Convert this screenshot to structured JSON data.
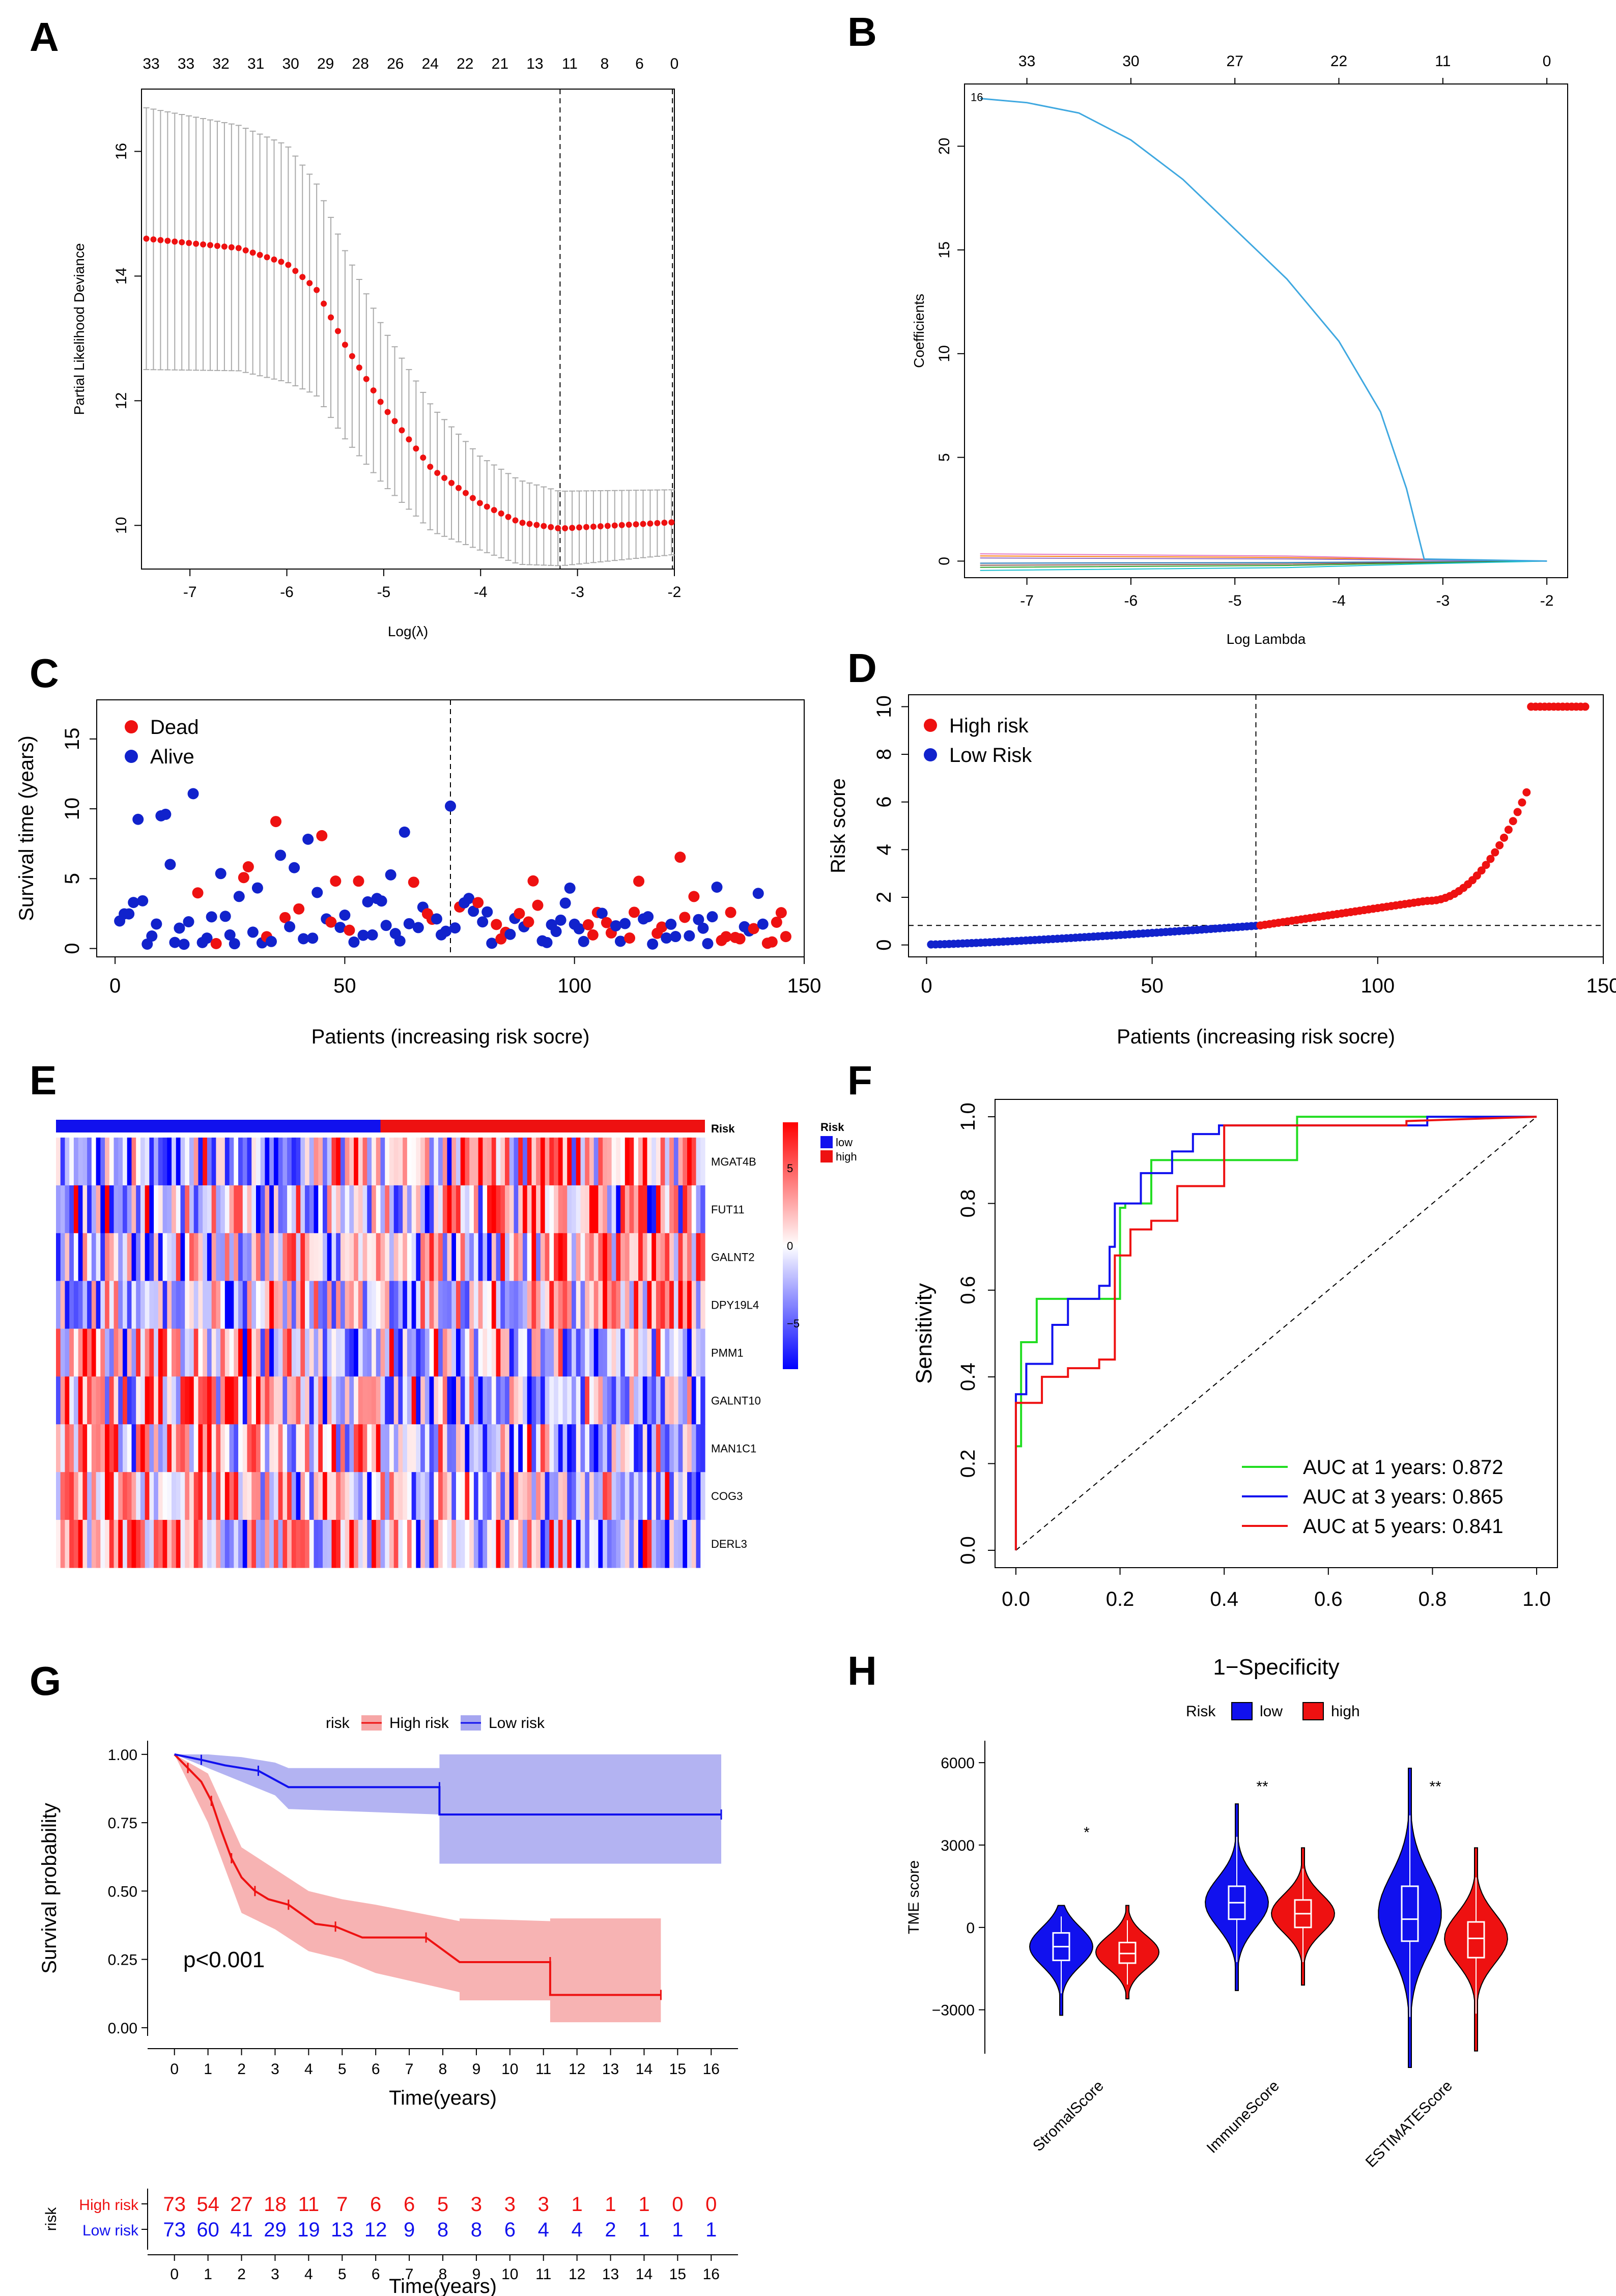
{
  "panels": {
    "A": "A",
    "B": "B",
    "C": "C",
    "D": "D",
    "E": "E",
    "F": "F",
    "G": "G",
    "H": "H"
  },
  "chart_data": [
    {
      "panel": "A",
      "type": "scatter",
      "xlabel": "Log(λ)",
      "ylabel": "Partial Likelihood Deviance",
      "xlim": [
        -7.5,
        -2
      ],
      "ylim": [
        9.3,
        17.0
      ],
      "x_ticks": [
        "-7",
        "-6",
        "-5",
        "-4",
        "-3",
        "-2"
      ],
      "y_ticks": [
        "10",
        "12",
        "14",
        "16"
      ],
      "top_ticks": [
        "33",
        "33",
        "32",
        "31",
        "30",
        "29",
        "28",
        "26",
        "24",
        "22",
        "21",
        "13",
        "11",
        "8",
        "6",
        "0"
      ],
      "vlines": [
        -3.18,
        -2.02
      ],
      "curve_points": [
        [
          -7.45,
          14.6
        ],
        [
          -6.5,
          14.45
        ],
        [
          -6.0,
          14.2
        ],
        [
          -5.7,
          13.8
        ],
        [
          -5.4,
          12.9
        ],
        [
          -5.0,
          11.9
        ],
        [
          -4.5,
          10.9
        ],
        [
          -4.0,
          10.35
        ],
        [
          -3.6,
          10.05
        ],
        [
          -3.18,
          9.95
        ],
        [
          -2.6,
          10.0
        ],
        [
          -2.02,
          10.05
        ]
      ],
      "error_halfwidth": [
        [
          -7.45,
          2.1
        ],
        [
          -6.0,
          1.9
        ],
        [
          -5.0,
          1.25
        ],
        [
          -4.0,
          0.75
        ],
        [
          -3.2,
          0.6
        ],
        [
          -2.0,
          0.52
        ]
      ]
    },
    {
      "panel": "B",
      "type": "line",
      "xlabel": "Log Lambda",
      "ylabel": "Coefficients",
      "xlim": [
        -7.6,
        -1.8
      ],
      "ylim": [
        -0.8,
        23
      ],
      "x_ticks": [
        "-7",
        "-6",
        "-5",
        "-4",
        "-3",
        "-2"
      ],
      "y_ticks": [
        "0",
        "5",
        "10",
        "15",
        "20"
      ],
      "top_ticks": [
        "33",
        "30",
        "27",
        "22",
        "11",
        "0"
      ],
      "curve_label": "16",
      "main_path": [
        [
          -7.45,
          22.3
        ],
        [
          -7.0,
          22.1
        ],
        [
          -6.5,
          21.6
        ],
        [
          -6.0,
          20.3
        ],
        [
          -5.5,
          18.4
        ],
        [
          -5.0,
          16.0
        ],
        [
          -4.5,
          13.6
        ],
        [
          -4.0,
          10.6
        ],
        [
          -3.6,
          7.2
        ],
        [
          -3.35,
          3.5
        ],
        [
          -3.18,
          0.1
        ],
        [
          -2.0,
          0.0
        ]
      ],
      "minor_lines": [
        {
          "start": 0.35,
          "color": "#e377c2"
        },
        {
          "start": 0.25,
          "color": "#ff7f0e"
        },
        {
          "start": 0.15,
          "color": "#9467bd"
        },
        {
          "start": -0.1,
          "color": "#1f77b4"
        },
        {
          "start": -0.2,
          "color": "#8c564b"
        },
        {
          "start": -0.3,
          "color": "#2ca02c"
        },
        {
          "start": -0.45,
          "color": "#17becf"
        }
      ]
    },
    {
      "panel": "C",
      "type": "scatter",
      "xlabel": "Patients (increasing risk socre)",
      "ylabel": "Survival time (years)",
      "xlim": [
        -4,
        150
      ],
      "ylim": [
        -0.6,
        17.8
      ],
      "x_ticks": [
        "0",
        "50",
        "100",
        "150"
      ],
      "y_ticks": [
        "0",
        "5",
        "10",
        "15"
      ],
      "vline": 73,
      "legend": [
        "Dead",
        "Alive"
      ],
      "colors": {
        "dead": "#ee1111",
        "alive": "#1122cc"
      }
    },
    {
      "panel": "D",
      "type": "scatter",
      "xlabel": "Patients (increasing risk socre)",
      "ylabel": "Risk score",
      "xlim": [
        -4,
        150
      ],
      "ylim": [
        -0.5,
        10.5
      ],
      "x_ticks": [
        "0",
        "50",
        "100",
        "150"
      ],
      "y_ticks": [
        "0",
        "2",
        "4",
        "6",
        "8",
        "10"
      ],
      "vline": 73,
      "hline": 0.82,
      "legend": [
        "High risk",
        "Low Risk"
      ],
      "colors": {
        "high": "#ee1111",
        "low": "#1122cc"
      }
    },
    {
      "panel": "E",
      "type": "heatmap",
      "annotation_label": "Risk",
      "genes": [
        "MGAT4B",
        "FUT11",
        "GALNT2",
        "DPY19L4",
        "PMM1",
        "GALNT10",
        "MAN1C1",
        "COG3",
        "DERL3"
      ],
      "scale_ticks": [
        "5",
        "0",
        "−5"
      ],
      "legend_title": "Risk",
      "legend_items": [
        {
          "label": "low",
          "color": "#1111ee"
        },
        {
          "label": "high",
          "color": "#ee1111"
        }
      ],
      "n_low": 73,
      "n_high": 73
    },
    {
      "panel": "F",
      "type": "line",
      "xlabel": "1−Specificity",
      "ylabel": "Sensitivity",
      "xlim": [
        -0.04,
        1.04
      ],
      "ylim": [
        -0.04,
        1.04
      ],
      "x_ticks": [
        "0.0",
        "0.2",
        "0.4",
        "0.6",
        "0.8",
        "1.0"
      ],
      "y_ticks": [
        "0.0",
        "0.2",
        "0.4",
        "0.6",
        "0.8",
        "1.0"
      ],
      "series": [
        {
          "name": "AUC at 1 years: 0.872",
          "color": "#22dd22",
          "points": [
            [
              0,
              0
            ],
            [
              0,
              0.24
            ],
            [
              0.01,
              0.24
            ],
            [
              0.01,
              0.48
            ],
            [
              0.04,
              0.48
            ],
            [
              0.04,
              0.58
            ],
            [
              0.2,
              0.58
            ],
            [
              0.2,
              0.79
            ],
            [
              0.21,
              0.79
            ],
            [
              0.21,
              0.8
            ],
            [
              0.26,
              0.8
            ],
            [
              0.26,
              0.9
            ],
            [
              0.54,
              0.9
            ],
            [
              0.54,
              1.0
            ],
            [
              1,
              1
            ]
          ]
        },
        {
          "name": "AUC at 3 years: 0.865",
          "color": "#1111ee",
          "points": [
            [
              0,
              0
            ],
            [
              0,
              0.36
            ],
            [
              0.02,
              0.36
            ],
            [
              0.02,
              0.43
            ],
            [
              0.07,
              0.43
            ],
            [
              0.07,
              0.52
            ],
            [
              0.1,
              0.52
            ],
            [
              0.1,
              0.58
            ],
            [
              0.16,
              0.58
            ],
            [
              0.16,
              0.61
            ],
            [
              0.18,
              0.61
            ],
            [
              0.18,
              0.7
            ],
            [
              0.19,
              0.7
            ],
            [
              0.19,
              0.8
            ],
            [
              0.24,
              0.8
            ],
            [
              0.24,
              0.87
            ],
            [
              0.3,
              0.87
            ],
            [
              0.3,
              0.92
            ],
            [
              0.34,
              0.92
            ],
            [
              0.34,
              0.96
            ],
            [
              0.39,
              0.96
            ],
            [
              0.39,
              0.98
            ],
            [
              0.79,
              0.98
            ],
            [
              0.79,
              1.0
            ],
            [
              1,
              1
            ]
          ]
        },
        {
          "name": "AUC at 5 years: 0.841",
          "color": "#ee1111",
          "points": [
            [
              0,
              0
            ],
            [
              0,
              0.34
            ],
            [
              0.05,
              0.34
            ],
            [
              0.05,
              0.4
            ],
            [
              0.1,
              0.4
            ],
            [
              0.1,
              0.42
            ],
            [
              0.16,
              0.42
            ],
            [
              0.16,
              0.44
            ],
            [
              0.19,
              0.44
            ],
            [
              0.19,
              0.68
            ],
            [
              0.22,
              0.68
            ],
            [
              0.22,
              0.74
            ],
            [
              0.26,
              0.74
            ],
            [
              0.26,
              0.76
            ],
            [
              0.31,
              0.76
            ],
            [
              0.31,
              0.84
            ],
            [
              0.4,
              0.84
            ],
            [
              0.4,
              0.98
            ],
            [
              0.75,
              0.98
            ],
            [
              0.75,
              0.99
            ],
            [
              1,
              1
            ]
          ]
        }
      ]
    },
    {
      "panel": "G",
      "type": "line",
      "xlabel": "Time(years)",
      "ylabel": "Survival probability",
      "xlim": [
        -0.8,
        16.8
      ],
      "ylim": [
        -0.03,
        1.05
      ],
      "x_ticks": [
        "0",
        "1",
        "2",
        "3",
        "4",
        "5",
        "6",
        "7",
        "8",
        "9",
        "10",
        "11",
        "12",
        "13",
        "14",
        "15",
        "16"
      ],
      "y_ticks": [
        "0.00",
        "0.25",
        "0.50",
        "0.75",
        "1.00"
      ],
      "legend_title": "risk",
      "pvalue": "p<0.001",
      "series": [
        {
          "name": "High risk",
          "color": "#ee1111",
          "fill": "#f6a6a6",
          "points": [
            [
              0,
              1
            ],
            [
              0.4,
              0.95
            ],
            [
              0.8,
              0.9
            ],
            [
              1.1,
              0.83
            ],
            [
              1.4,
              0.72
            ],
            [
              1.7,
              0.62
            ],
            [
              2.0,
              0.55
            ],
            [
              2.4,
              0.5
            ],
            [
              2.8,
              0.47
            ],
            [
              3.4,
              0.45
            ],
            [
              4.2,
              0.38
            ],
            [
              4.8,
              0.37
            ],
            [
              5.6,
              0.33
            ],
            [
              7.5,
              0.33
            ],
            [
              8.5,
              0.24
            ],
            [
              11.2,
              0.24
            ],
            [
              11.2,
              0.12
            ],
            [
              14.5,
              0.12
            ]
          ],
          "ci": [
            [
              0,
              1,
              1
            ],
            [
              1,
              0.93,
              0.75
            ],
            [
              2,
              0.66,
              0.42
            ],
            [
              3,
              0.58,
              0.36
            ],
            [
              4,
              0.5,
              0.28
            ],
            [
              5,
              0.47,
              0.25
            ],
            [
              6,
              0.45,
              0.2
            ],
            [
              8.5,
              0.39,
              0.13
            ],
            [
              8.5,
              0.4,
              0.1
            ],
            [
              11.2,
              0.39,
              0.1
            ],
            [
              11.2,
              0.4,
              0.02
            ],
            [
              14.5,
              0.4,
              0.02
            ]
          ]
        },
        {
          "name": "Low risk",
          "color": "#1111ee",
          "fill": "#a6a6f0",
          "points": [
            [
              0,
              1
            ],
            [
              0.8,
              0.98
            ],
            [
              1.5,
              0.96
            ],
            [
              2.5,
              0.94
            ],
            [
              3.4,
              0.88
            ],
            [
              7.9,
              0.88
            ],
            [
              7.9,
              0.78
            ],
            [
              16.3,
              0.78
            ]
          ],
          "ci": [
            [
              0,
              1,
              1
            ],
            [
              1,
              1,
              0.95
            ],
            [
              2,
              0.99,
              0.9
            ],
            [
              3,
              0.97,
              0.85
            ],
            [
              3.4,
              0.95,
              0.8
            ],
            [
              7.9,
              0.95,
              0.78
            ],
            [
              7.9,
              1.0,
              0.6
            ],
            [
              16.3,
              1.0,
              0.6
            ]
          ]
        }
      ],
      "risk_table": {
        "label": "risk",
        "rows": [
          {
            "name": "High risk",
            "color": "#ee1111",
            "values": [
              "73",
              "54",
              "27",
              "18",
              "11",
              "7",
              "6",
              "6",
              "5",
              "3",
              "3",
              "3",
              "1",
              "1",
              "1",
              "0",
              "0"
            ]
          },
          {
            "name": "Low risk",
            "color": "#1111ee",
            "values": [
              "73",
              "60",
              "41",
              "29",
              "19",
              "13",
              "12",
              "9",
              "8",
              "8",
              "6",
              "4",
              "4",
              "2",
              "1",
              "1",
              "1"
            ]
          }
        ],
        "xlabel": "Time(years)"
      }
    },
    {
      "panel": "H",
      "type": "violin",
      "ylabel": "TME score",
      "ylim": [
        -4600,
        6800
      ],
      "y_ticks": [
        "−3000",
        "0",
        "3000",
        "6000"
      ],
      "legend_title": "Risk",
      "legend_items": [
        {
          "label": "low",
          "color": "#1111ee"
        },
        {
          "label": "high",
          "color": "#ee1111"
        }
      ],
      "categories": [
        "StromalScore",
        "ImmuneScore",
        "ESTIMATEScore"
      ],
      "significance": [
        "*",
        "**",
        "**"
      ],
      "groups": [
        {
          "low": {
            "min": -3200,
            "max": 800,
            "q1": -1200,
            "med": -700,
            "q3": -200,
            "mode": -700,
            "spread": 700
          },
          "high": {
            "min": -2600,
            "max": 800,
            "q1": -1300,
            "med": -950,
            "q3": -550,
            "mode": -900,
            "spread": 600
          }
        },
        {
          "low": {
            "min": -2300,
            "max": 4500,
            "q1": 300,
            "med": 900,
            "q3": 1500,
            "mode": 900,
            "spread": 900
          },
          "high": {
            "min": -2100,
            "max": 2900,
            "q1": 0,
            "med": 500,
            "q3": 1000,
            "mode": 500,
            "spread": 700
          }
        },
        {
          "low": {
            "min": -5100,
            "max": 5800,
            "q1": -500,
            "med": 300,
            "q3": 1500,
            "mode": 500,
            "spread": 1400
          },
          "high": {
            "min": -4500,
            "max": 2900,
            "q1": -1100,
            "med": -400,
            "q3": 200,
            "mode": -400,
            "spread": 900
          }
        }
      ]
    }
  ]
}
